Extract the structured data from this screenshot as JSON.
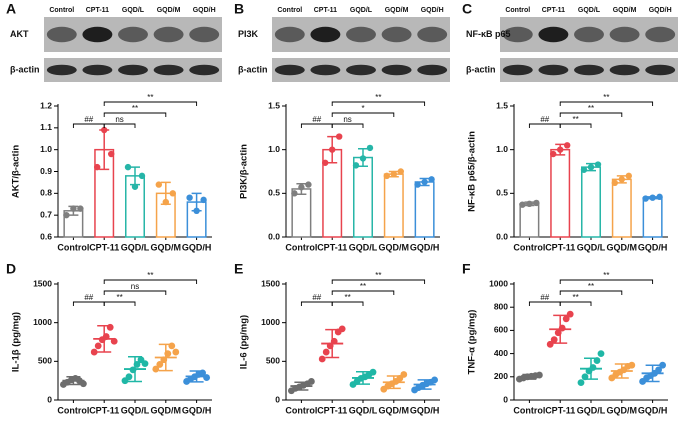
{
  "chart_data": [
    {
      "type": "bar",
      "panel_label": "A",
      "ylabel": "AKT/β-actin",
      "blot": {
        "lanes": [
          "Control",
          "CPT-11",
          "GQD/L",
          "GQD/M",
          "GQD/H"
        ],
        "proteins": [
          "AKT",
          "β-actin"
        ]
      },
      "categories": [
        "Control",
        "CPT-11",
        "GQD/L",
        "GQD/M",
        "GQD/H"
      ],
      "values": [
        0.72,
        1.0,
        0.88,
        0.8,
        0.76
      ],
      "errors": [
        0.02,
        0.09,
        0.04,
        0.05,
        0.04
      ],
      "points": [
        [
          0.7,
          0.73,
          0.73
        ],
        [
          0.92,
          1.09,
          0.98
        ],
        [
          0.92,
          0.83,
          0.88
        ],
        [
          0.84,
          0.76,
          0.8
        ],
        [
          0.78,
          0.72,
          0.77
        ]
      ],
      "comparisons": [
        "##",
        null,
        "ns",
        "**",
        "**"
      ],
      "colors": [
        "#7f7f7f",
        "#e8434e",
        "#26b5a8",
        "#f5a34a",
        "#3b8fd9"
      ],
      "ylim": [
        0.6,
        1.2
      ],
      "yticks": [
        0.6,
        0.7,
        0.8,
        0.9,
        {
          "value": 1,
          "label": "1.0"
        },
        1.1,
        1.2
      ]
    },
    {
      "type": "bar",
      "panel_label": "B",
      "ylabel": "PI3K/β-actin",
      "blot": {
        "lanes": [
          "Control",
          "CPT-11",
          "GQD/L",
          "GQD/M",
          "GQD/H"
        ],
        "proteins": [
          "PI3K",
          "β-actin"
        ]
      },
      "categories": [
        "Control",
        "CPT-11",
        "GQD/L",
        "GQD/M",
        "GQD/H"
      ],
      "values": [
        0.55,
        1.0,
        0.91,
        0.72,
        0.63
      ],
      "errors": [
        0.06,
        0.15,
        0.1,
        0.03,
        0.04
      ],
      "points": [
        [
          0.5,
          0.57,
          0.6
        ],
        [
          0.85,
          1.0,
          1.15
        ],
        [
          0.82,
          0.9,
          1.02
        ],
        [
          0.7,
          0.72,
          0.75
        ],
        [
          0.6,
          0.63,
          0.66
        ]
      ],
      "comparisons": [
        "##",
        null,
        "ns",
        "*",
        "**"
      ],
      "colors": [
        "#7f7f7f",
        "#e8434e",
        "#26b5a8",
        "#f5a34a",
        "#3b8fd9"
      ],
      "ylim": [
        0,
        1.5
      ],
      "yticks": [
        {
          "value": 0,
          "label": "0.0"
        },
        0.5,
        {
          "value": 1,
          "label": "1.0"
        },
        1.5
      ]
    },
    {
      "type": "bar",
      "panel_label": "C",
      "ylabel": "NF-κB p65/β-actin",
      "blot": {
        "lanes": [
          "Control",
          "CPT-11",
          "GQD/L",
          "GQD/M",
          "GQD/H"
        ],
        "proteins": [
          "NF-κB p65",
          "β-actin"
        ]
      },
      "categories": [
        "Control",
        "CPT-11",
        "GQD/L",
        "GQD/M",
        "GQD/H"
      ],
      "values": [
        0.38,
        1.0,
        0.8,
        0.66,
        0.45
      ],
      "errors": [
        0.02,
        0.06,
        0.04,
        0.04,
        0.01
      ],
      "points": [
        [
          0.37,
          0.38,
          0.39
        ],
        [
          0.95,
          1.0,
          1.05
        ],
        [
          0.77,
          0.8,
          0.83
        ],
        [
          0.62,
          0.66,
          0.7
        ],
        [
          0.44,
          0.45,
          0.46
        ]
      ],
      "comparisons": [
        "##",
        null,
        "**",
        "**",
        "**"
      ],
      "colors": [
        "#7f7f7f",
        "#e8434e",
        "#26b5a8",
        "#f5a34a",
        "#3b8fd9"
      ],
      "ylim": [
        0,
        1.5
      ],
      "yticks": [
        {
          "value": 0,
          "label": "0.0"
        },
        0.5,
        {
          "value": 1,
          "label": "1.0"
        },
        1.5
      ]
    },
    {
      "type": "dot",
      "panel_label": "D",
      "ylabel": "IL-1β  (pg/mg)",
      "categories": [
        "Control",
        "CPT-11",
        "GQD/L",
        "GQD/M",
        "GQD/H"
      ],
      "values": [
        250,
        790,
        400,
        550,
        305
      ],
      "errors": [
        50,
        170,
        160,
        170,
        70
      ],
      "points": [
        [
          200,
          230,
          260,
          280,
          250,
          210
        ],
        [
          620,
          700,
          780,
          820,
          940,
          760
        ],
        [
          250,
          300,
          390,
          460,
          520,
          470
        ],
        [
          400,
          460,
          520,
          600,
          700,
          620
        ],
        [
          240,
          270,
          300,
          330,
          350,
          290
        ]
      ],
      "comparisons": [
        "##",
        null,
        "**",
        "ns",
        "**"
      ],
      "colors": [
        "#6d6d6d",
        "#e8434e",
        "#1fb7a6",
        "#f5a34a",
        "#3b8fd9"
      ],
      "ylim": [
        0,
        1500
      ],
      "yticks": [
        0,
        500,
        1000,
        1500
      ]
    },
    {
      "type": "dot",
      "panel_label": "E",
      "ylabel": "IL-6  (pg/mg)",
      "categories": [
        "Control",
        "CPT-11",
        "GQD/L",
        "GQD/M",
        "GQD/H"
      ],
      "values": [
        180,
        730,
        285,
        230,
        200
      ],
      "errors": [
        50,
        180,
        80,
        80,
        60
      ],
      "points": [
        [
          120,
          150,
          170,
          190,
          210,
          240
        ],
        [
          530,
          620,
          700,
          760,
          880,
          920
        ],
        [
          200,
          240,
          280,
          300,
          330,
          360
        ],
        [
          140,
          180,
          210,
          240,
          280,
          330
        ],
        [
          130,
          160,
          190,
          210,
          230,
          260
        ]
      ],
      "comparisons": [
        "##",
        null,
        "**",
        "**",
        "**"
      ],
      "colors": [
        "#6d6d6d",
        "#e8434e",
        "#1fb7a6",
        "#f5a34a",
        "#3b8fd9"
      ],
      "ylim": [
        0,
        1500
      ],
      "yticks": [
        0,
        500,
        1000,
        1500
      ]
    },
    {
      "type": "dot",
      "panel_label": "F",
      "ylabel": "TNF-α  (pg/mg)",
      "categories": [
        "Control",
        "CPT-11",
        "GQD/L",
        "GQD/M",
        "GQD/H"
      ],
      "values": [
        200,
        610,
        270,
        250,
        230
      ],
      "errors": [
        20,
        120,
        90,
        60,
        70
      ],
      "points": [
        [
          180,
          190,
          200,
          205,
          210,
          215
        ],
        [
          480,
          520,
          580,
          620,
          700,
          740
        ],
        [
          150,
          200,
          250,
          280,
          340,
          400
        ],
        [
          190,
          220,
          240,
          260,
          290,
          300
        ],
        [
          160,
          190,
          210,
          230,
          260,
          300
        ]
      ],
      "comparisons": [
        "##",
        null,
        "**",
        "**",
        "**"
      ],
      "colors": [
        "#6d6d6d",
        "#e8434e",
        "#1fb7a6",
        "#f5a34a",
        "#3b8fd9"
      ],
      "ylim": [
        0,
        1000
      ],
      "yticks": [
        0,
        200,
        400,
        600,
        800,
        1000
      ]
    }
  ]
}
